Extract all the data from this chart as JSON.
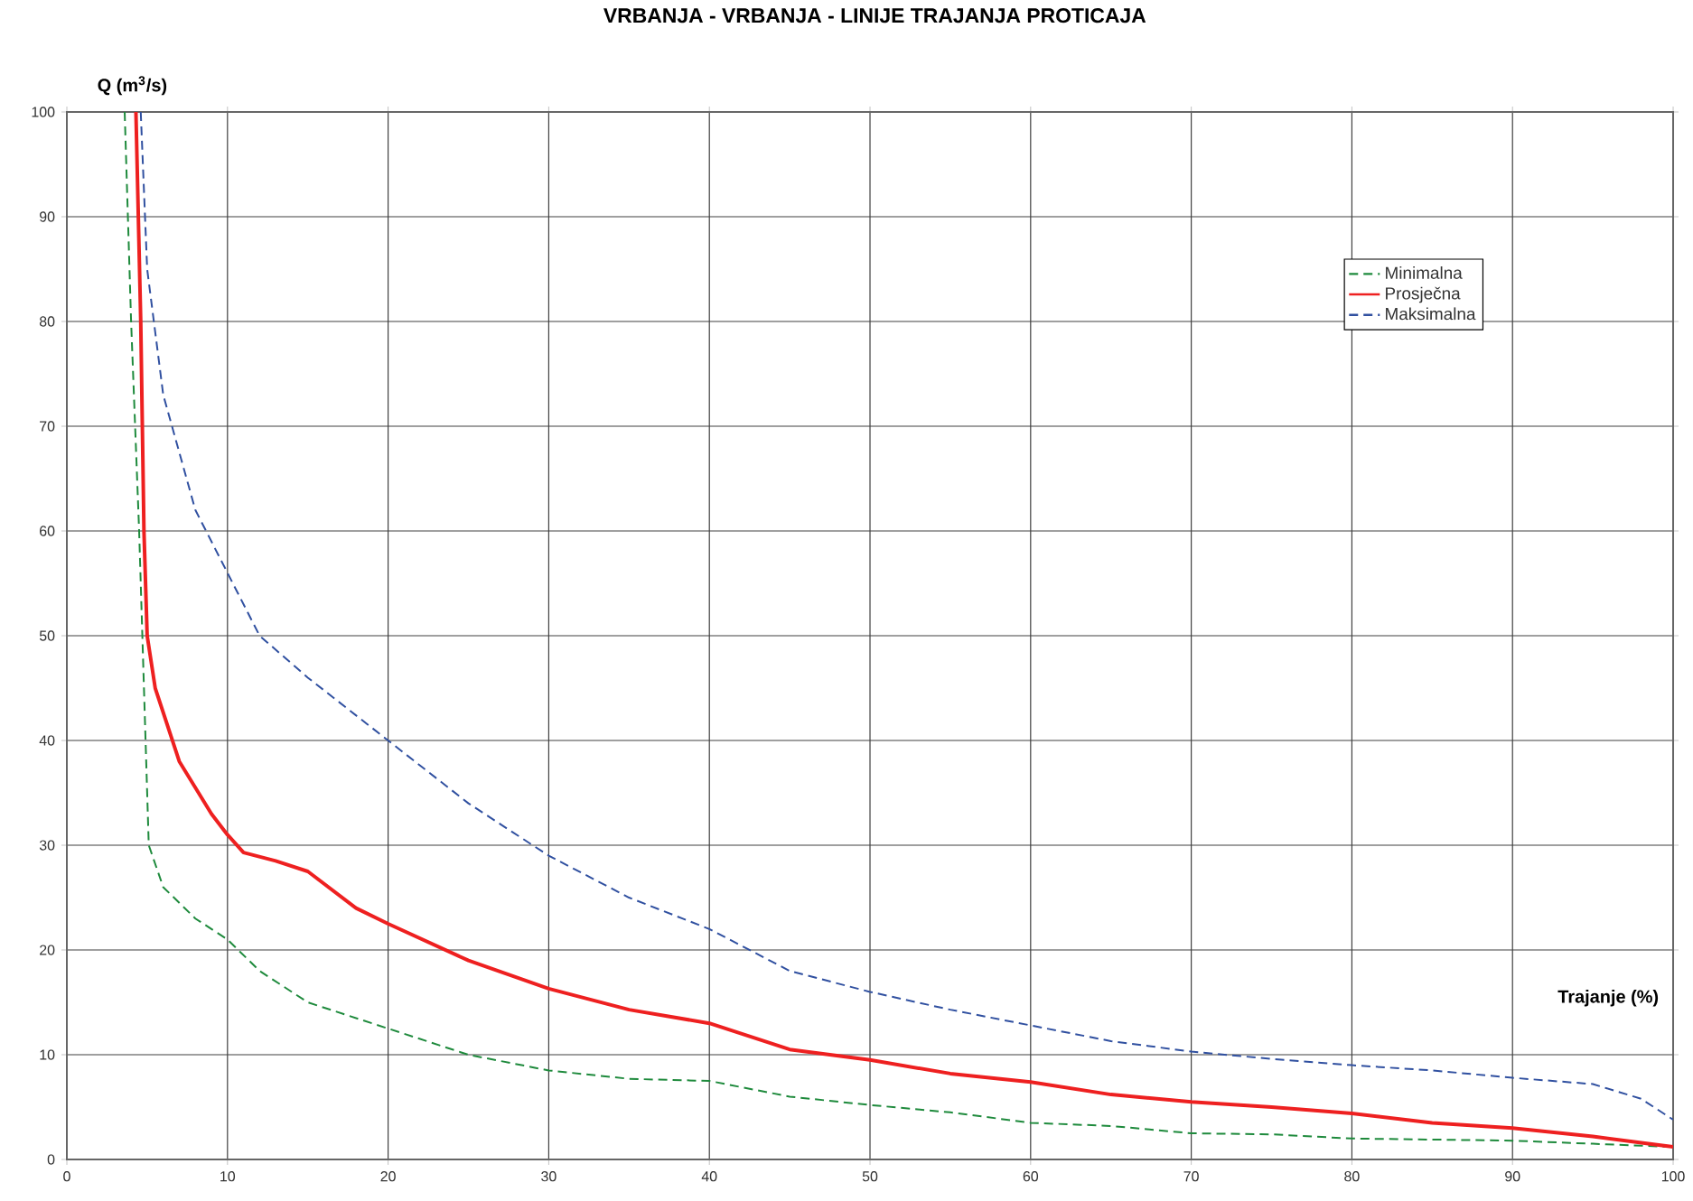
{
  "chart_data": {
    "type": "line",
    "title": "VRBANJA  -  VRBANJA  -  LINIJE TRAJANJA  PROTICAJA",
    "xlabel": "Trajanje (%)",
    "ylabel": "Q (m$^{3}$/s)",
    "xlim": [
      0,
      100
    ],
    "ylim": [
      0,
      100
    ],
    "xticks": [
      0,
      10,
      20,
      30,
      40,
      50,
      60,
      70,
      80,
      90,
      100
    ],
    "yticks": [
      0,
      10,
      20,
      30,
      40,
      50,
      60,
      70,
      80,
      90,
      100
    ],
    "grid": true,
    "legend": "right",
    "marker": "none",
    "series": [
      {
        "name": "Minimalna",
        "color": "#1e8a3c",
        "line_style": "dashed",
        "x": [
          3.6,
          4.0,
          4.5,
          4.8,
          5.0,
          5.1,
          6,
          8,
          10,
          12,
          15,
          20,
          25,
          30,
          35,
          40,
          45,
          50,
          55,
          60,
          65,
          70,
          75,
          80,
          85,
          90,
          95,
          100
        ],
        "values": [
          100,
          80,
          60,
          45,
          35,
          30,
          26,
          23,
          21,
          18,
          15,
          12.5,
          10,
          8.5,
          7.7,
          7.5,
          6,
          5.2,
          4.5,
          3.5,
          3.2,
          2.5,
          2.4,
          2,
          1.9,
          1.8,
          1.5,
          1.2
        ]
      },
      {
        "name": "Prosječna",
        "color": "#ee2020",
        "line_style": "solid",
        "x": [
          4.3,
          4.6,
          4.8,
          5.0,
          5.5,
          7,
          9,
          10,
          11,
          13,
          15,
          18,
          20,
          25,
          30,
          35,
          40,
          45,
          50,
          55,
          60,
          65,
          70,
          75,
          80,
          85,
          90,
          95,
          100
        ],
        "values": [
          100,
          80,
          60,
          50,
          45,
          38,
          33,
          31,
          29.3,
          28.5,
          27.5,
          24,
          22.5,
          19,
          16.3,
          14.3,
          13,
          10.5,
          9.5,
          8.2,
          7.4,
          6.2,
          5.5,
          5,
          4.4,
          3.5,
          3,
          2.2,
          1.2
        ]
      },
      {
        "name": "Maksimalna",
        "color": "#3050a0",
        "line_style": "dashed",
        "x": [
          4.6,
          5,
          6,
          8,
          10,
          12,
          15,
          20,
          25,
          30,
          35,
          40,
          45,
          50,
          55,
          60,
          65,
          70,
          75,
          80,
          85,
          90,
          95,
          98,
          100
        ],
        "values": [
          100,
          85,
          73,
          62,
          56,
          50,
          46,
          40,
          34,
          29,
          25,
          22,
          18,
          16,
          14.3,
          12.8,
          11.3,
          10.3,
          9.6,
          9,
          8.5,
          7.8,
          7.2,
          5.8,
          3.8
        ]
      }
    ]
  }
}
